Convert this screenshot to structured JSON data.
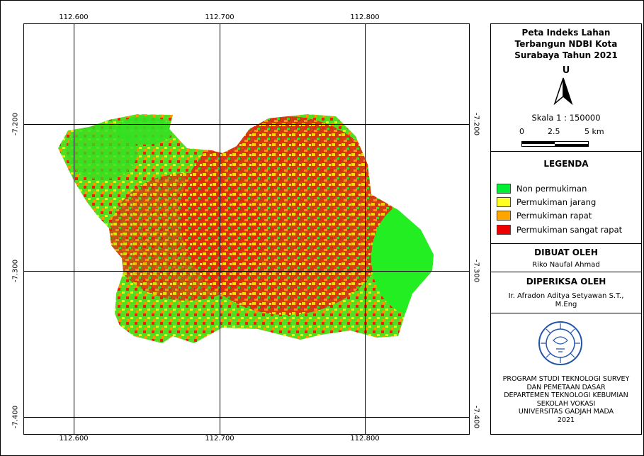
{
  "map": {
    "lon_ticks": [
      "112.600",
      "112.700",
      "112.800"
    ],
    "lat_ticks": [
      "-7.200",
      "-7.300",
      "-7.400"
    ]
  },
  "title_block": {
    "title": "Peta Indeks Lahan Terbangun NDBI Kota Surabaya Tahun 2021",
    "north_label": "U",
    "scale_text": "Skala 1 : 150000",
    "scale_ticks": [
      "0",
      "2.5",
      "5 km"
    ]
  },
  "legend": {
    "heading": "LEGENDA",
    "items": [
      {
        "label": "Non permukiman",
        "color": "#00ee33"
      },
      {
        "label": "Permukiman jarang",
        "color": "#ffff22"
      },
      {
        "label": "Permukiman rapat",
        "color": "#ffa500"
      },
      {
        "label": "Permukiman sangat rapat",
        "color": "#ee0000"
      }
    ]
  },
  "made_by": {
    "heading": "DIBUAT OLEH",
    "name": "Riko Naufal Ahmad"
  },
  "checked_by": {
    "heading": "DIPERIKSA OLEH",
    "name": "Ir. Afradon Aditya Setyawan S.T., M.Eng"
  },
  "institution": {
    "lines": [
      "PROGRAM STUDI TEKNOLOGI SURVEY",
      "DAN PEMETAAN DASAR",
      "DEPARTEMEN TEKNOLOGI KEBUMIAN",
      "SEKOLAH VOKASI",
      "UNIVERSITAS GADJAH MADA",
      "2021"
    ]
  }
}
